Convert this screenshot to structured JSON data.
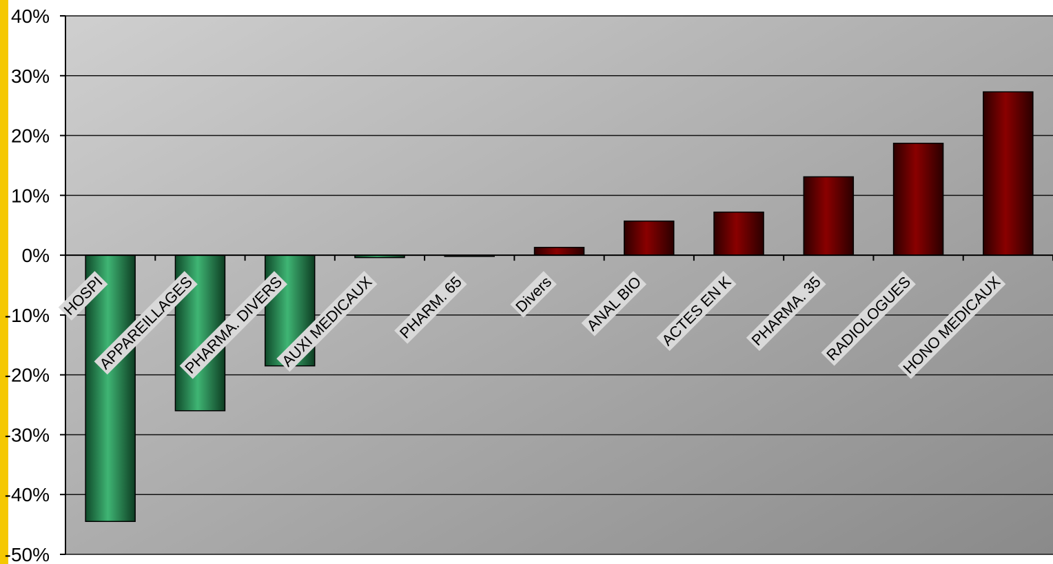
{
  "chart_data": {
    "type": "bar",
    "title": "",
    "xlabel": "",
    "ylabel": "",
    "categories": [
      "HOSPI",
      "APPAREILLAGES",
      "PHARMA. DIVERS",
      "AUXI MEDICAUX",
      "PHARM. 65",
      "Divers",
      "ANAL BIO",
      "ACTES EN K",
      "PHARMA. 35",
      "RADIOLOGUES",
      "HONO MEDICAUX"
    ],
    "values": [
      -44.5,
      -26,
      -18.5,
      -0.4,
      -0.2,
      1.3,
      5.7,
      7.2,
      13.1,
      18.7,
      27.3
    ],
    "ylim": [
      -50,
      40
    ],
    "yticks": [
      40,
      30,
      20,
      10,
      0,
      -10,
      -20,
      -30,
      -40,
      -50
    ],
    "ytick_labels": [
      "40%",
      "30%",
      "20%",
      "10%",
      "0%",
      "-10%",
      "-20%",
      "-30%",
      "-40%",
      "-50%"
    ],
    "grid": true,
    "legend": "none"
  },
  "colors": {
    "negative_bar": "#2e9a60",
    "positive_bar": "#7a0000",
    "plot_bg_light": "#cfcfcf",
    "plot_bg_dark": "#8a8a8a",
    "left_strip": "#f5c800",
    "label_bg": "#d9d9d9"
  }
}
